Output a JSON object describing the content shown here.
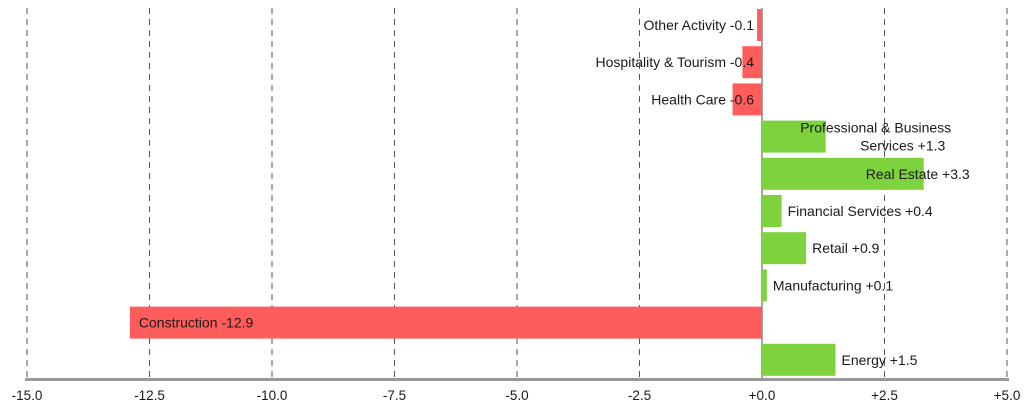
{
  "chart_data": {
    "type": "bar",
    "orientation": "horizontal",
    "categories": [
      "Other Activity",
      "Hospitality & Tourism",
      "Health Care",
      "Professional & Business Services",
      "Real Estate",
      "Financial Services",
      "Retail",
      "Manufacturing",
      "Construction",
      "Energy"
    ],
    "values": [
      -0.1,
      -0.4,
      -0.6,
      1.3,
      3.3,
      0.4,
      0.9,
      0.1,
      -12.9,
      1.5
    ],
    "data_labels": [
      "Other Activity -0.1",
      "Hospitality & Tourism -0.4",
      "Health Care -0.6",
      "Professional & Business Services +1.3",
      "Real Estate +3.3",
      "Financial Services +0.4",
      "Retail +0.9",
      "Manufacturing +0.1",
      "Construction -12.9",
      "Energy +1.5"
    ],
    "xlim": [
      -15.0,
      5.0
    ],
    "xticks": [
      -15.0,
      -12.5,
      -10.0,
      -7.5,
      -5.0,
      -2.5,
      0.0,
      2.5,
      5.0
    ],
    "xtick_labels": [
      "-15.0",
      "-12.5",
      "-10.0",
      "-7.5",
      "-5.0",
      "-2.5",
      "+0.0",
      "+2.5",
      "+5.0"
    ],
    "title": "",
    "xlabel": "",
    "ylabel": "",
    "grid": "vertical dashed",
    "colors": {
      "positive": "#7ed23d",
      "negative": "#ff5c5c",
      "grid": "#555555",
      "axis": "#999999"
    }
  }
}
